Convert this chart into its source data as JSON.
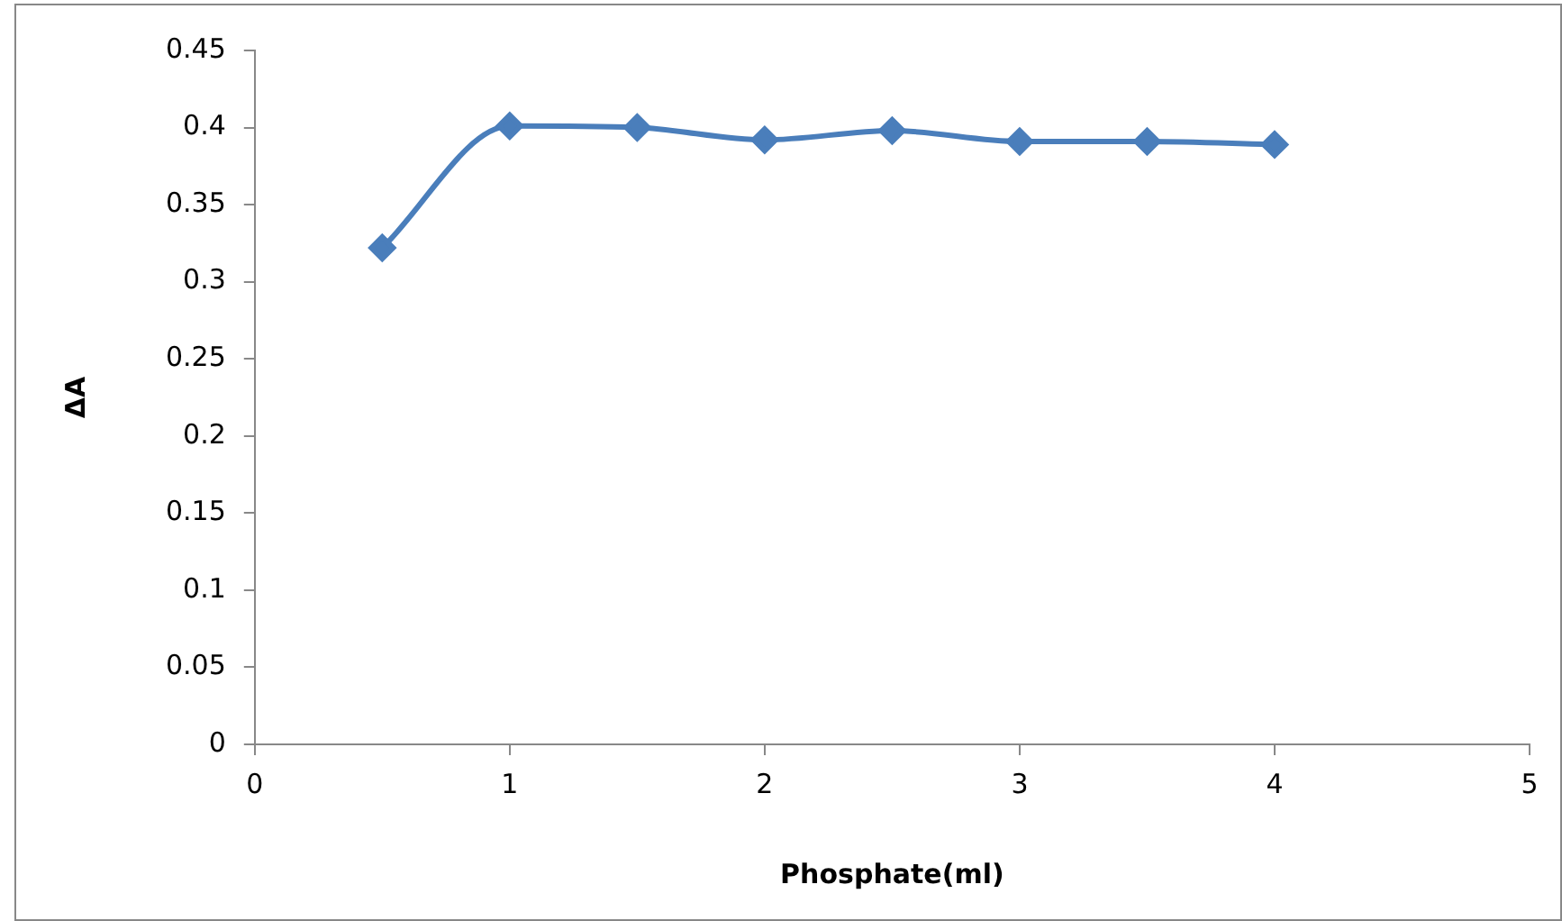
{
  "chart_data": {
    "type": "line",
    "xlabel": "Phosphate(ml)",
    "ylabel": "ΔA",
    "x": [
      0.5,
      1,
      1.5,
      2,
      2.5,
      3,
      3.5,
      4
    ],
    "series": [
      {
        "color": "#4a7ebb",
        "values": [
          0.322,
          0.401,
          0.4,
          0.392,
          0.398,
          0.391,
          0.391,
          0.389
        ]
      }
    ],
    "xlim": [
      0,
      5
    ],
    "xticks": [
      0,
      1,
      2,
      3,
      4,
      5
    ],
    "ylim": [
      0,
      0.45
    ],
    "yticks": [
      0,
      0.05,
      0.1,
      0.15,
      0.2,
      0.25,
      0.3,
      0.35,
      0.4,
      0.45
    ],
    "grid": false,
    "legend": false,
    "marker": "diamond",
    "line_style": "solid"
  }
}
